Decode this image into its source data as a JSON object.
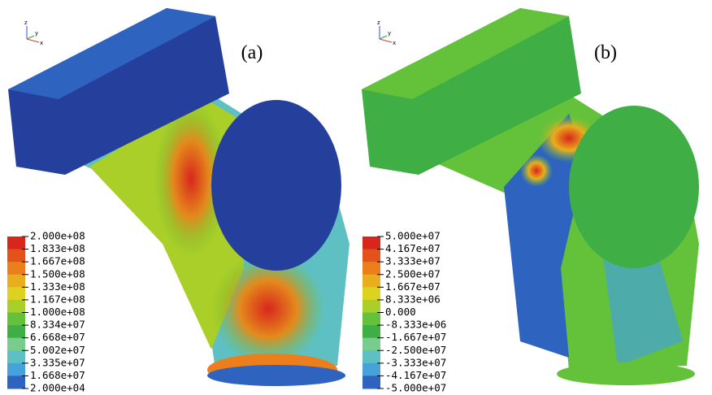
{
  "panels": [
    {
      "label": "(a)",
      "triad": [
        "z",
        "y",
        "x"
      ],
      "legend": {
        "labels": [
          "2.000e+08",
          "1.833e+08",
          "1.667e+08",
          "1.500e+08",
          "1.333e+08",
          "1.167e+08",
          "1.000e+08",
          "8.334e+07",
          "6.668e+07",
          "5.002e+07",
          "3.335e+07",
          "1.668e+07",
          "2.000e+04"
        ],
        "colors": [
          "#d8261d",
          "#e4521b",
          "#ec7f1c",
          "#e9ae1d",
          "#dcd21f",
          "#a9cf28",
          "#63c23a",
          "#3fae45",
          "#78cd8e",
          "#5fc0c4",
          "#45a2da",
          "#2f63c0",
          "#253f9c"
        ]
      }
    },
    {
      "label": "(b)",
      "triad": [
        "z",
        "y",
        "x"
      ],
      "legend": {
        "labels": [
          "5.000e+07",
          "4.167e+07",
          "3.333e+07",
          "2.500e+07",
          "1.667e+07",
          "8.333e+06",
          "0.000",
          "-8.333e+06",
          "-1.667e+07",
          "-2.500e+07",
          "-3.333e+07",
          "-4.167e+07",
          "-5.000e+07"
        ],
        "colors": [
          "#d8261d",
          "#e4521b",
          "#ec7f1c",
          "#e9ae1d",
          "#dcd21f",
          "#a9cf28",
          "#63c23a",
          "#3fae45",
          "#78cd8e",
          "#5fc0c4",
          "#45a2da",
          "#2f63c0",
          "#253f9c"
        ]
      }
    }
  ]
}
